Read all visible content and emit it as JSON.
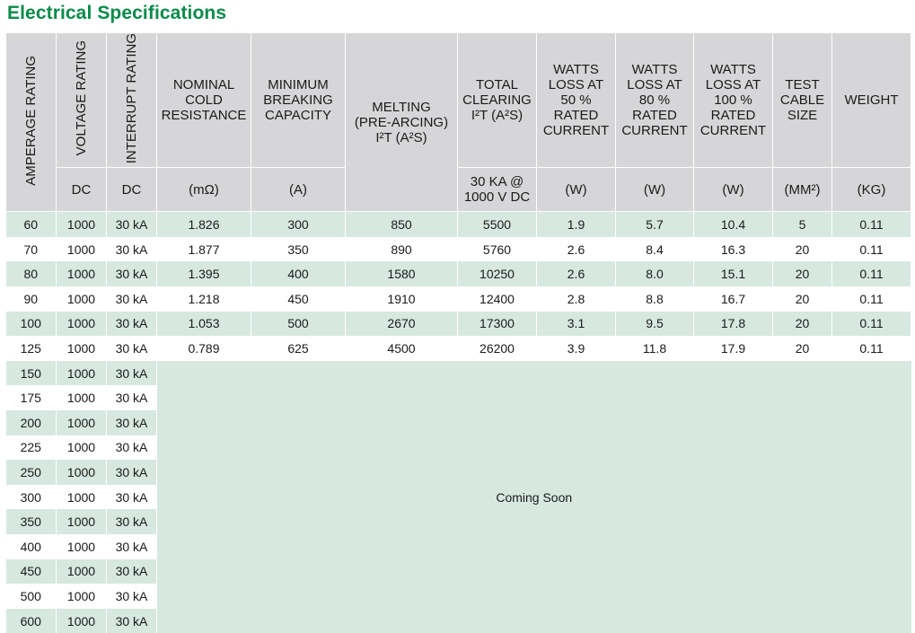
{
  "title": "Electrical Specifications",
  "headers": {
    "amperage": "AMPERAGE\nRATING",
    "voltage": "VOLTAGE\nRATING",
    "interrupt": "INTERRUPT\nRATING",
    "nominal": "NOMINAL\nCOLD\nRESISTANCE",
    "minimum": "MINIMUM\nBREAKING\nCAPACITY",
    "melting": "MELTING\n(PRE-ARCING)\nI²T (A²S)",
    "total": "TOTAL\nCLEARING\nI²T (A²S)",
    "w50": "WATTS\nLOSS AT\n50 %\nRATED\nCURRENT",
    "w80": "WATTS\nLOSS AT\n80 %\nRATED\nCURRENT",
    "w100": "WATTS\nLOSS AT\n100 %\nRATED\nCURRENT",
    "cable": "TEST\nCABLE\nSIZE",
    "weight": "WEIGHT"
  },
  "units": {
    "voltage": "DC",
    "interrupt": "DC",
    "nominal": "(mΩ)",
    "minimum": "(A)",
    "total": "30 KA @\n1000 V DC",
    "w50": "(W)",
    "w80": "(W)",
    "w100": "(W)",
    "cable": "(MM²)",
    "weight": "(KG)"
  },
  "full_rows": [
    [
      "60",
      "1000",
      "30 kA",
      "1.826",
      "300",
      "850",
      "5500",
      "1.9",
      "5.7",
      "10.4",
      "5",
      "0.11"
    ],
    [
      "70",
      "1000",
      "30 kA",
      "1.877",
      "350",
      "890",
      "5760",
      "2.6",
      "8.4",
      "16.3",
      "20",
      "0.11"
    ],
    [
      "80",
      "1000",
      "30 kA",
      "1.395",
      "400",
      "1580",
      "10250",
      "2.6",
      "8.0",
      "15.1",
      "20",
      "0.11"
    ],
    [
      "90",
      "1000",
      "30 kA",
      "1.218",
      "450",
      "1910",
      "12400",
      "2.8",
      "8.8",
      "16.7",
      "20",
      "0.11"
    ],
    [
      "100",
      "1000",
      "30 kA",
      "1.053",
      "500",
      "2670",
      "17300",
      "3.1",
      "9.5",
      "17.8",
      "20",
      "0.11"
    ],
    [
      "125",
      "1000",
      "30 kA",
      "0.789",
      "625",
      "4500",
      "26200",
      "3.9",
      "11.8",
      "17.9",
      "20",
      "0.11"
    ]
  ],
  "partial_rows": [
    [
      "150",
      "1000",
      "30 kA"
    ],
    [
      "175",
      "1000",
      "30 kA"
    ],
    [
      "200",
      "1000",
      "30 kA"
    ],
    [
      "225",
      "1000",
      "30 kA"
    ],
    [
      "250",
      "1000",
      "30 kA"
    ],
    [
      "300",
      "1000",
      "30 kA"
    ],
    [
      "350",
      "1000",
      "30 kA"
    ],
    [
      "400",
      "1000",
      "30 kA"
    ],
    [
      "450",
      "1000",
      "30 kA"
    ],
    [
      "500",
      "1000",
      "30 kA"
    ],
    [
      "600",
      "1000",
      "30 kA"
    ]
  ],
  "coming_soon": "Coming Soon"
}
